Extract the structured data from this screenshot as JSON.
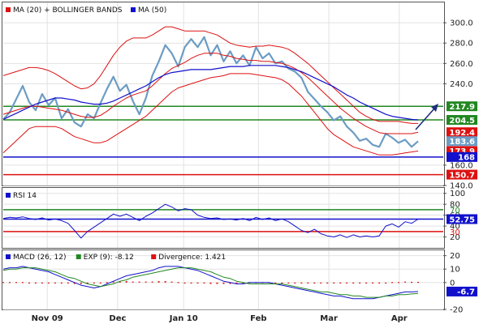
{
  "chart_data": [
    {
      "type": "line",
      "panel": "price",
      "legend": [
        {
          "label": "MA (20) + BOLLINGER BANDS",
          "color": "#dd1111"
        },
        {
          "label": "MA (50)",
          "color": "#1111cc"
        }
      ],
      "ylim": [
        140,
        320
      ],
      "y_ticks": [
        {
          "value": 300,
          "label": "300.0"
        },
        {
          "value": 280,
          "label": "280.0"
        },
        {
          "value": 260,
          "label": "260.0"
        },
        {
          "value": 240,
          "label": "240.0"
        },
        {
          "value": 160,
          "label": "160.0"
        },
        {
          "value": 140,
          "label": "140.0"
        }
      ],
      "tags": [
        {
          "value": 217.9,
          "label": "217.9",
          "color": "#228822"
        },
        {
          "value": 204.5,
          "label": "204.5",
          "color": "#228822"
        },
        {
          "value": 192.4,
          "label": "192.4",
          "color": "#dd1111"
        },
        {
          "value": 183.6,
          "label": "183.6",
          "color": "#6c9cc4"
        },
        {
          "value": 173.9,
          "label": "173.9",
          "color": "#dd1111"
        },
        {
          "value": 168,
          "label": "168",
          "color": "#1111cc"
        },
        {
          "value": 150.7,
          "label": "150.7",
          "color": "#dd1111"
        }
      ],
      "horizontal_lines": [
        {
          "value": 217.9,
          "color": "#228822"
        },
        {
          "value": 204.5,
          "color": "#228822"
        },
        {
          "value": 168,
          "color": "#1111cc"
        },
        {
          "value": 150.7,
          "color": "#dd1111"
        }
      ],
      "series": [
        {
          "role": "price",
          "color": "#6c9cc4",
          "values": [
            205,
            212,
            225,
            238,
            222,
            214,
            230,
            219,
            226,
            206,
            215,
            202,
            198,
            210,
            206,
            221,
            235,
            247,
            233,
            239,
            223,
            210,
            226,
            248,
            262,
            278,
            270,
            257,
            276,
            284,
            276,
            286,
            268,
            278,
            262,
            272,
            260,
            268,
            258,
            276,
            265,
            270,
            260,
            262,
            255,
            252,
            246,
            232,
            225,
            218,
            212,
            204,
            208,
            198,
            192,
            184,
            186,
            180,
            178,
            191,
            187,
            182,
            185,
            178,
            183.6
          ]
        },
        {
          "role": "ma20",
          "color": "#dd1111",
          "values": [
            210,
            212,
            214,
            216,
            218,
            218,
            217,
            216,
            215,
            214,
            212,
            210,
            208,
            207,
            207,
            209,
            213,
            218,
            222,
            226,
            229,
            231,
            233,
            238,
            244,
            250,
            255,
            258,
            261,
            265,
            268,
            270,
            270,
            270,
            268,
            267,
            265,
            264,
            263,
            263,
            262,
            262,
            261,
            260,
            258,
            255,
            251,
            246,
            240,
            234,
            228,
            222,
            216,
            211,
            206,
            202,
            198,
            195,
            192,
            191,
            191,
            191,
            191,
            191,
            192.4
          ]
        },
        {
          "role": "bollinger-upper",
          "color": "#dd1111",
          "values": [
            248,
            250,
            252,
            254,
            256,
            256,
            255,
            253,
            250,
            246,
            242,
            238,
            235,
            236,
            240,
            248,
            258,
            268,
            276,
            282,
            285,
            285,
            285,
            288,
            292,
            296,
            296,
            294,
            292,
            292,
            292,
            292,
            290,
            288,
            284,
            280,
            278,
            277,
            276,
            277,
            277,
            278,
            277,
            276,
            274,
            270,
            265,
            260,
            254,
            248,
            242,
            236,
            230,
            224,
            218,
            212,
            208,
            205,
            203,
            203,
            203,
            203,
            202,
            201,
            201
          ]
        },
        {
          "role": "bollinger-lower",
          "color": "#dd1111",
          "values": [
            172,
            178,
            184,
            190,
            196,
            198,
            198,
            198,
            198,
            196,
            192,
            188,
            186,
            184,
            182,
            182,
            184,
            188,
            192,
            196,
            200,
            204,
            208,
            214,
            220,
            226,
            232,
            236,
            238,
            240,
            242,
            244,
            246,
            247,
            248,
            250,
            250,
            250,
            250,
            249,
            248,
            247,
            246,
            244,
            240,
            234,
            228,
            220,
            212,
            204,
            196,
            190,
            186,
            182,
            178,
            176,
            174,
            172,
            170,
            170,
            170,
            171,
            172,
            173,
            173.9
          ]
        },
        {
          "role": "ma50",
          "color": "#1111cc",
          "values": [
            205,
            208,
            211,
            214,
            217,
            220,
            222,
            224,
            226,
            226,
            225,
            224,
            222,
            221,
            220,
            220,
            221,
            223,
            226,
            229,
            232,
            235,
            238,
            242,
            246,
            249,
            251,
            252,
            253,
            254,
            254,
            254,
            254,
            255,
            256,
            257,
            257,
            257,
            258,
            258,
            258,
            258,
            258,
            257,
            256,
            254,
            252,
            249,
            246,
            243,
            240,
            237,
            233,
            229,
            226,
            222,
            219,
            216,
            213,
            210,
            208,
            207,
            206,
            205,
            204.5
          ]
        }
      ]
    },
    {
      "type": "line",
      "panel": "rsi",
      "legend": [
        {
          "label": "RSI 14",
          "color": "#1111cc"
        }
      ],
      "ylim": [
        0,
        110
      ],
      "y_ticks": [
        {
          "value": 100,
          "label": "100"
        },
        {
          "value": 80,
          "label": "80"
        },
        {
          "value": 60,
          "label": "60"
        },
        {
          "value": 40,
          "label": "40"
        },
        {
          "value": 20,
          "label": "20"
        }
      ],
      "level_labels": [
        {
          "value": 70,
          "label": "70",
          "color": "#228822"
        },
        {
          "value": 30,
          "label": "30",
          "color": "#dd1111"
        }
      ],
      "tags": [
        {
          "value": 52.75,
          "label": "52.75",
          "color": "#1111cc"
        }
      ],
      "horizontal_lines": [
        {
          "value": 70,
          "color": "#228822"
        },
        {
          "value": 52.75,
          "color": "#1111cc"
        },
        {
          "value": 30,
          "color": "#dd1111"
        }
      ],
      "series": [
        {
          "role": "rsi",
          "color": "#1111cc",
          "values": [
            54,
            56,
            55,
            57,
            54,
            52,
            55,
            51,
            53,
            50,
            45,
            32,
            18,
            30,
            38,
            46,
            54,
            62,
            58,
            62,
            56,
            50,
            58,
            64,
            72,
            80,
            75,
            68,
            72,
            70,
            60,
            56,
            54,
            55,
            52,
            53,
            51,
            54,
            50,
            56,
            52,
            55,
            50,
            53,
            48,
            40,
            32,
            28,
            34,
            26,
            22,
            20,
            24,
            19,
            24,
            20,
            22,
            20,
            22,
            40,
            44,
            38,
            48,
            45,
            52.75
          ]
        }
      ]
    },
    {
      "type": "line",
      "panel": "macd",
      "legend": [
        {
          "label": "MACD (26, 12)",
          "color": "#1111cc"
        },
        {
          "label": "EXP (9): -8.12",
          "color": "#228822"
        },
        {
          "label": "Divergence: 1.421",
          "color": "#dd1111"
        }
      ],
      "ylim": [
        -20,
        24
      ],
      "y_ticks": [
        {
          "value": 20,
          "label": "20"
        },
        {
          "value": 10,
          "label": "10"
        },
        {
          "value": 0,
          "label": "0"
        },
        {
          "value": -20,
          "label": "-20"
        }
      ],
      "tags": [
        {
          "value": -6.7,
          "label": "-6.7",
          "color": "#1111cc"
        }
      ],
      "series": [
        {
          "role": "macd",
          "color": "#1111cc",
          "values": [
            10,
            11,
            11,
            12,
            11,
            10,
            9,
            8,
            6,
            4,
            2,
            0,
            -2,
            -3,
            -4,
            -3,
            -1,
            1,
            3,
            5,
            6,
            7,
            8,
            9,
            11,
            12,
            12,
            12,
            11,
            10,
            9,
            7,
            5,
            3,
            1,
            0,
            -1,
            -1,
            0,
            0,
            0,
            0,
            -1,
            -2,
            -3,
            -4,
            -5,
            -6,
            -7,
            -8,
            -9,
            -10,
            -10,
            -11,
            -12,
            -12,
            -12,
            -12,
            -11,
            -10,
            -9,
            -8,
            -7,
            -7,
            -6.7
          ]
        },
        {
          "role": "exp9",
          "color": "#228822",
          "values": [
            9,
            10,
            10,
            11,
            11,
            11,
            10,
            9,
            8,
            6,
            4,
            3,
            1,
            -1,
            -2,
            -3,
            -2,
            -1,
            1,
            2,
            4,
            5,
            6,
            7,
            8,
            9,
            10,
            11,
            11,
            11,
            10,
            9,
            8,
            6,
            4,
            3,
            1,
            0,
            -1,
            -1,
            -1,
            -1,
            -1,
            -1,
            -2,
            -3,
            -4,
            -5,
            -6,
            -7,
            -7,
            -8,
            -9,
            -9,
            -10,
            -10,
            -11,
            -11,
            -11,
            -10,
            -10,
            -9,
            -9,
            -8.5,
            -8.12
          ]
        },
        {
          "role": "divergence",
          "color": "#dd1111",
          "values": [
            1,
            1,
            1,
            1,
            0,
            -1,
            -1,
            -1,
            -2,
            -2,
            -2,
            -3,
            -3,
            -2,
            -2,
            0,
            1,
            2,
            2,
            3,
            2,
            2,
            2,
            2,
            3,
            3,
            2,
            1,
            0,
            -1,
            -1,
            -2,
            -3,
            -3,
            -3,
            -3,
            -2,
            -1,
            1,
            1,
            1,
            1,
            0,
            -1,
            -1,
            -1,
            -1,
            -1,
            -1,
            -1,
            -2,
            -2,
            -1,
            -2,
            -2,
            -2,
            -1,
            -1,
            0,
            0,
            1,
            1,
            2,
            1.5,
            1.421
          ]
        }
      ]
    }
  ],
  "x_axis": {
    "n_points": 65,
    "month_labels": [
      {
        "index": 10,
        "label": "Nov 09"
      },
      {
        "index": 26,
        "label": "Dec"
      },
      {
        "index": 41,
        "label": "Jan 10"
      },
      {
        "index": 58,
        "label": "Feb"
      },
      {
        "index": 74,
        "label": "Mar"
      },
      {
        "index": 90,
        "label": "Apr"
      }
    ],
    "total_slots": 100
  }
}
